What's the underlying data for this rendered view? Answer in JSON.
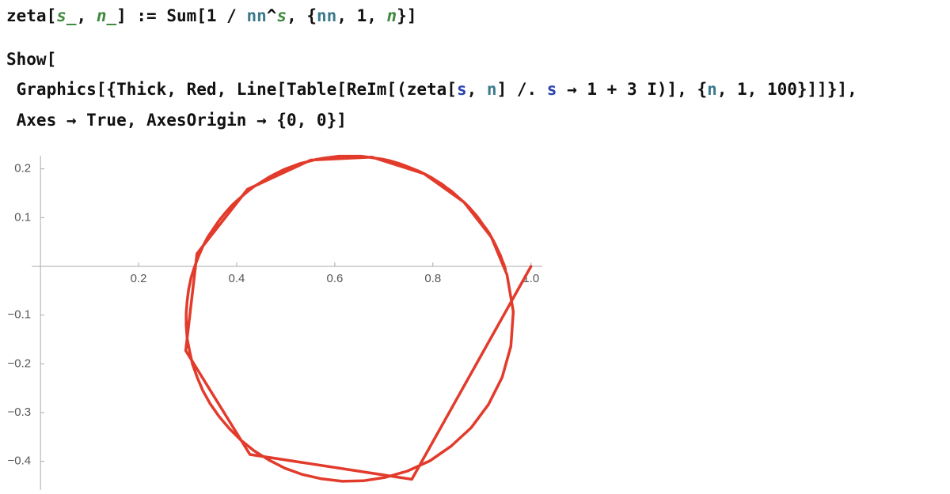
{
  "code": [
    [
      {
        "text": "zeta["
      },
      {
        "text": "s_",
        "color": "#3f8a3f",
        "italic": true
      },
      {
        "text": ", "
      },
      {
        "text": "n_",
        "color": "#3f8a3f",
        "italic": true
      },
      {
        "text": "] := Sum[1 / "
      },
      {
        "text": "nn",
        "color": "#3d7b8c"
      },
      {
        "text": "^"
      },
      {
        "text": "s",
        "color": "#3f8a3f",
        "italic": true
      },
      {
        "text": ", {"
      },
      {
        "text": "nn",
        "color": "#3d7b8c"
      },
      {
        "text": ", 1, "
      },
      {
        "text": "n",
        "color": "#3f8a3f",
        "italic": true
      },
      {
        "text": "}]"
      }
    ],
    [
      {
        "text": "Show["
      }
    ],
    [
      {
        "text": " Graphics[{Thick, Red, Line[Table[ReIm[(zeta["
      },
      {
        "text": "s",
        "color": "#2c43b0"
      },
      {
        "text": ", "
      },
      {
        "text": "n",
        "color": "#3d7b8c"
      },
      {
        "text": "] /. "
      },
      {
        "text": "s",
        "color": "#2c43b0"
      },
      {
        "text": " → 1 + 3 I)], {"
      },
      {
        "text": "n",
        "color": "#3d7b8c"
      },
      {
        "text": ", 1, 100}]]}],"
      }
    ],
    [
      {
        "text": " Axes → True, AxesOrigin → {0, 0}]"
      }
    ]
  ],
  "chart_data": {
    "type": "line",
    "color": "#e23b2b",
    "x": [
      1,
      0.757,
      0.427,
      0.296,
      0.319,
      0.422,
      0.551,
      0.676,
      0.782,
      0.863,
      0.919,
      0.951,
      0.964,
      0.959,
      0.941,
      0.913,
      0.878,
      0.837,
      0.794,
      0.748,
      0.703,
      0.658,
      0.615,
      0.573,
      0.534,
      0.498,
      0.465,
      0.435,
      0.409,
      0.385,
      0.364,
      0.346,
      0.331,
      0.32,
      0.31,
      0.304,
      0.299,
      0.297,
      0.297,
      0.299,
      0.302,
      0.307,
      0.314,
      0.322,
      0.331,
      0.341,
      0.353,
      0.364,
      0.377,
      0.39,
      0.404,
      0.419,
      0.434,
      0.45,
      0.466,
      0.481,
      0.497,
      0.513,
      0.529,
      0.545,
      0.561,
      0.577,
      0.593,
      0.608,
      0.624,
      0.639,
      0.654,
      0.668,
      0.683,
      0.697,
      0.711,
      0.724,
      0.737,
      0.75,
      0.762,
      0.774,
      0.786,
      0.797,
      0.808,
      0.818,
      0.828,
      0.838,
      0.847,
      0.856,
      0.865,
      0.873,
      0.88,
      0.888,
      0.895,
      0.901,
      0.908,
      0.914,
      0.919,
      0.924,
      0.929,
      0.933,
      0.938,
      0.941,
      0.945,
      0.948
    ],
    "values": [
      0,
      -0.437,
      -0.386,
      -0.173,
      0.026,
      0.158,
      0.218,
      0.224,
      0.19,
      0.132,
      0.06,
      -0.017,
      -0.093,
      -0.164,
      -0.228,
      -0.284,
      -0.331,
      -0.369,
      -0.399,
      -0.42,
      -0.433,
      -0.44,
      -0.441,
      -0.436,
      -0.427,
      -0.414,
      -0.397,
      -0.378,
      -0.357,
      -0.333,
      -0.308,
      -0.282,
      -0.255,
      -0.229,
      -0.201,
      -0.174,
      -0.148,
      -0.121,
      -0.096,
      -0.071,
      -0.047,
      -0.023,
      -0.001,
      0.02,
      0.041,
      0.06,
      0.078,
      0.094,
      0.11,
      0.125,
      0.138,
      0.151,
      0.163,
      0.173,
      0.183,
      0.191,
      0.199,
      0.205,
      0.211,
      0.215,
      0.219,
      0.222,
      0.224,
      0.226,
      0.226,
      0.226,
      0.226,
      0.224,
      0.222,
      0.22,
      0.217,
      0.213,
      0.209,
      0.204,
      0.199,
      0.194,
      0.188,
      0.182,
      0.175,
      0.169,
      0.161,
      0.154,
      0.146,
      0.138,
      0.13,
      0.122,
      0.114,
      0.105,
      0.096,
      0.087,
      0.078,
      0.069,
      0.06,
      0.051,
      0.041,
      0.032,
      0.022,
      0.013,
      0.003,
      -0.006
    ],
    "xlim": [
      -0.018,
      1.023
    ],
    "ylim": [
      -0.459,
      0.227
    ],
    "xticks": [
      0.2,
      0.4,
      0.6,
      0.8,
      {
        "value": 1,
        "label": "1.0"
      }
    ],
    "yticks": [
      0.2,
      0.1,
      {
        "value": -0.1,
        "label": "−0.1"
      },
      {
        "value": -0.2,
        "label": "−0.2"
      },
      {
        "value": -0.3,
        "label": "−0.3"
      },
      {
        "value": -0.4,
        "label": "−0.4"
      }
    ]
  }
}
